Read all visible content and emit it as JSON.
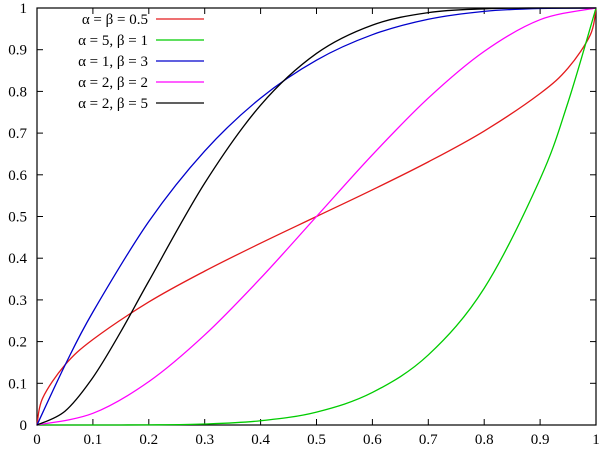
{
  "chart_data": {
    "type": "line",
    "title": "",
    "xlabel": "",
    "ylabel": "",
    "xlim": [
      0,
      1
    ],
    "ylim": [
      0,
      1
    ],
    "grid": false,
    "legend_position": "top-left",
    "x_ticks": [
      "0",
      "0.1",
      "0.2",
      "0.3",
      "0.4",
      "0.5",
      "0.6",
      "0.7",
      "0.8",
      "0.9",
      "1"
    ],
    "y_ticks": [
      "0",
      "0.1",
      "0.2",
      "0.3",
      "0.4",
      "0.5",
      "0.6",
      "0.7",
      "0.8",
      "0.9",
      "1"
    ],
    "series": [
      {
        "name": "α = β = 0.5",
        "color": "#e41a1c",
        "x": [
          0,
          0.01,
          0.05,
          0.1,
          0.2,
          0.3,
          0.4,
          0.5,
          0.6,
          0.7,
          0.8,
          0.9,
          0.95,
          0.99,
          1
        ],
        "y": [
          0,
          0.064,
          0.144,
          0.205,
          0.295,
          0.369,
          0.436,
          0.5,
          0.564,
          0.631,
          0.705,
          0.795,
          0.856,
          0.936,
          1
        ]
      },
      {
        "name": "α = 5, β = 1",
        "color": "#00cc00",
        "x": [
          0,
          0.1,
          0.2,
          0.3,
          0.4,
          0.5,
          0.6,
          0.7,
          0.8,
          0.9,
          0.95,
          1
        ],
        "y": [
          0,
          0.0,
          0.0003,
          0.0024,
          0.0102,
          0.031,
          0.078,
          0.168,
          0.328,
          0.59,
          0.774,
          1
        ]
      },
      {
        "name": "α = 1, β = 3",
        "color": "#0000cc",
        "x": [
          0,
          0.05,
          0.1,
          0.2,
          0.3,
          0.4,
          0.5,
          0.6,
          0.7,
          0.8,
          0.9,
          1
        ],
        "y": [
          0,
          0.143,
          0.271,
          0.488,
          0.657,
          0.784,
          0.875,
          0.936,
          0.973,
          0.992,
          0.999,
          1
        ]
      },
      {
        "name": "α = 2, β = 2",
        "color": "#ff00ff",
        "x": [
          0,
          0.1,
          0.2,
          0.3,
          0.4,
          0.5,
          0.6,
          0.7,
          0.8,
          0.9,
          1
        ],
        "y": [
          0,
          0.028,
          0.104,
          0.216,
          0.352,
          0.5,
          0.648,
          0.784,
          0.896,
          0.972,
          1
        ]
      },
      {
        "name": "α = 2, β = 5",
        "color": "#000000",
        "x": [
          0,
          0.05,
          0.1,
          0.15,
          0.2,
          0.3,
          0.4,
          0.5,
          0.6,
          0.7,
          0.8,
          0.9,
          1
        ],
        "y": [
          0,
          0.033,
          0.114,
          0.224,
          0.345,
          0.58,
          0.767,
          0.891,
          0.959,
          0.989,
          0.998,
          1.0,
          1
        ]
      }
    ]
  }
}
